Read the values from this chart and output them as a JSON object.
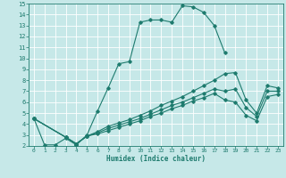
{
  "xlabel": "Humidex (Indice chaleur)",
  "xlim": [
    -0.5,
    23.5
  ],
  "ylim": [
    2,
    15
  ],
  "xticks": [
    0,
    1,
    2,
    3,
    4,
    5,
    6,
    7,
    8,
    9,
    10,
    11,
    12,
    13,
    14,
    15,
    16,
    17,
    18,
    19,
    20,
    21,
    22,
    23
  ],
  "yticks": [
    2,
    3,
    4,
    5,
    6,
    7,
    8,
    9,
    10,
    11,
    12,
    13,
    14,
    15
  ],
  "bg_color": "#c6e8e8",
  "grid_color": "#ffffff",
  "line_color": "#1e7b6e",
  "line_width": 0.8,
  "marker": "D",
  "marker_size": 1.8,
  "series": [
    {
      "x": [
        0,
        1,
        2,
        3,
        4,
        5,
        6,
        7,
        8,
        9,
        10,
        11,
        12,
        13,
        14,
        15,
        16,
        17,
        18
      ],
      "y": [
        4.5,
        2.1,
        2.1,
        2.7,
        2.1,
        3.0,
        5.2,
        7.3,
        9.5,
        9.7,
        13.3,
        13.5,
        13.5,
        13.3,
        14.8,
        14.7,
        14.2,
        13.0,
        10.5
      ]
    },
    {
      "x": [
        0,
        3,
        4,
        5,
        6,
        7,
        8,
        9,
        10,
        11,
        12,
        13,
        14,
        15,
        16,
        17,
        18,
        19,
        20,
        21,
        22,
        23
      ],
      "y": [
        4.5,
        2.8,
        2.2,
        2.9,
        3.3,
        3.8,
        4.1,
        4.4,
        4.8,
        5.2,
        5.7,
        6.1,
        6.5,
        7.0,
        7.5,
        8.0,
        8.6,
        8.7,
        6.2,
        5.0,
        7.5,
        7.3
      ]
    },
    {
      "x": [
        0,
        3,
        4,
        5,
        6,
        7,
        8,
        9,
        10,
        11,
        12,
        13,
        14,
        15,
        16,
        17,
        18,
        19,
        20,
        21,
        22,
        23
      ],
      "y": [
        4.5,
        2.8,
        2.2,
        2.9,
        3.2,
        3.6,
        3.9,
        4.2,
        4.5,
        4.9,
        5.3,
        5.7,
        6.0,
        6.4,
        6.8,
        7.2,
        7.0,
        7.2,
        5.5,
        4.7,
        7.0,
        7.0
      ]
    },
    {
      "x": [
        0,
        3,
        4,
        5,
        6,
        7,
        8,
        9,
        10,
        11,
        12,
        13,
        14,
        15,
        16,
        17,
        18,
        19,
        20,
        21,
        22,
        23
      ],
      "y": [
        4.5,
        2.8,
        2.2,
        2.9,
        3.1,
        3.4,
        3.7,
        4.0,
        4.3,
        4.7,
        5.0,
        5.4,
        5.7,
        6.1,
        6.4,
        6.8,
        6.2,
        6.0,
        4.8,
        4.3,
        6.5,
        6.7
      ]
    }
  ]
}
